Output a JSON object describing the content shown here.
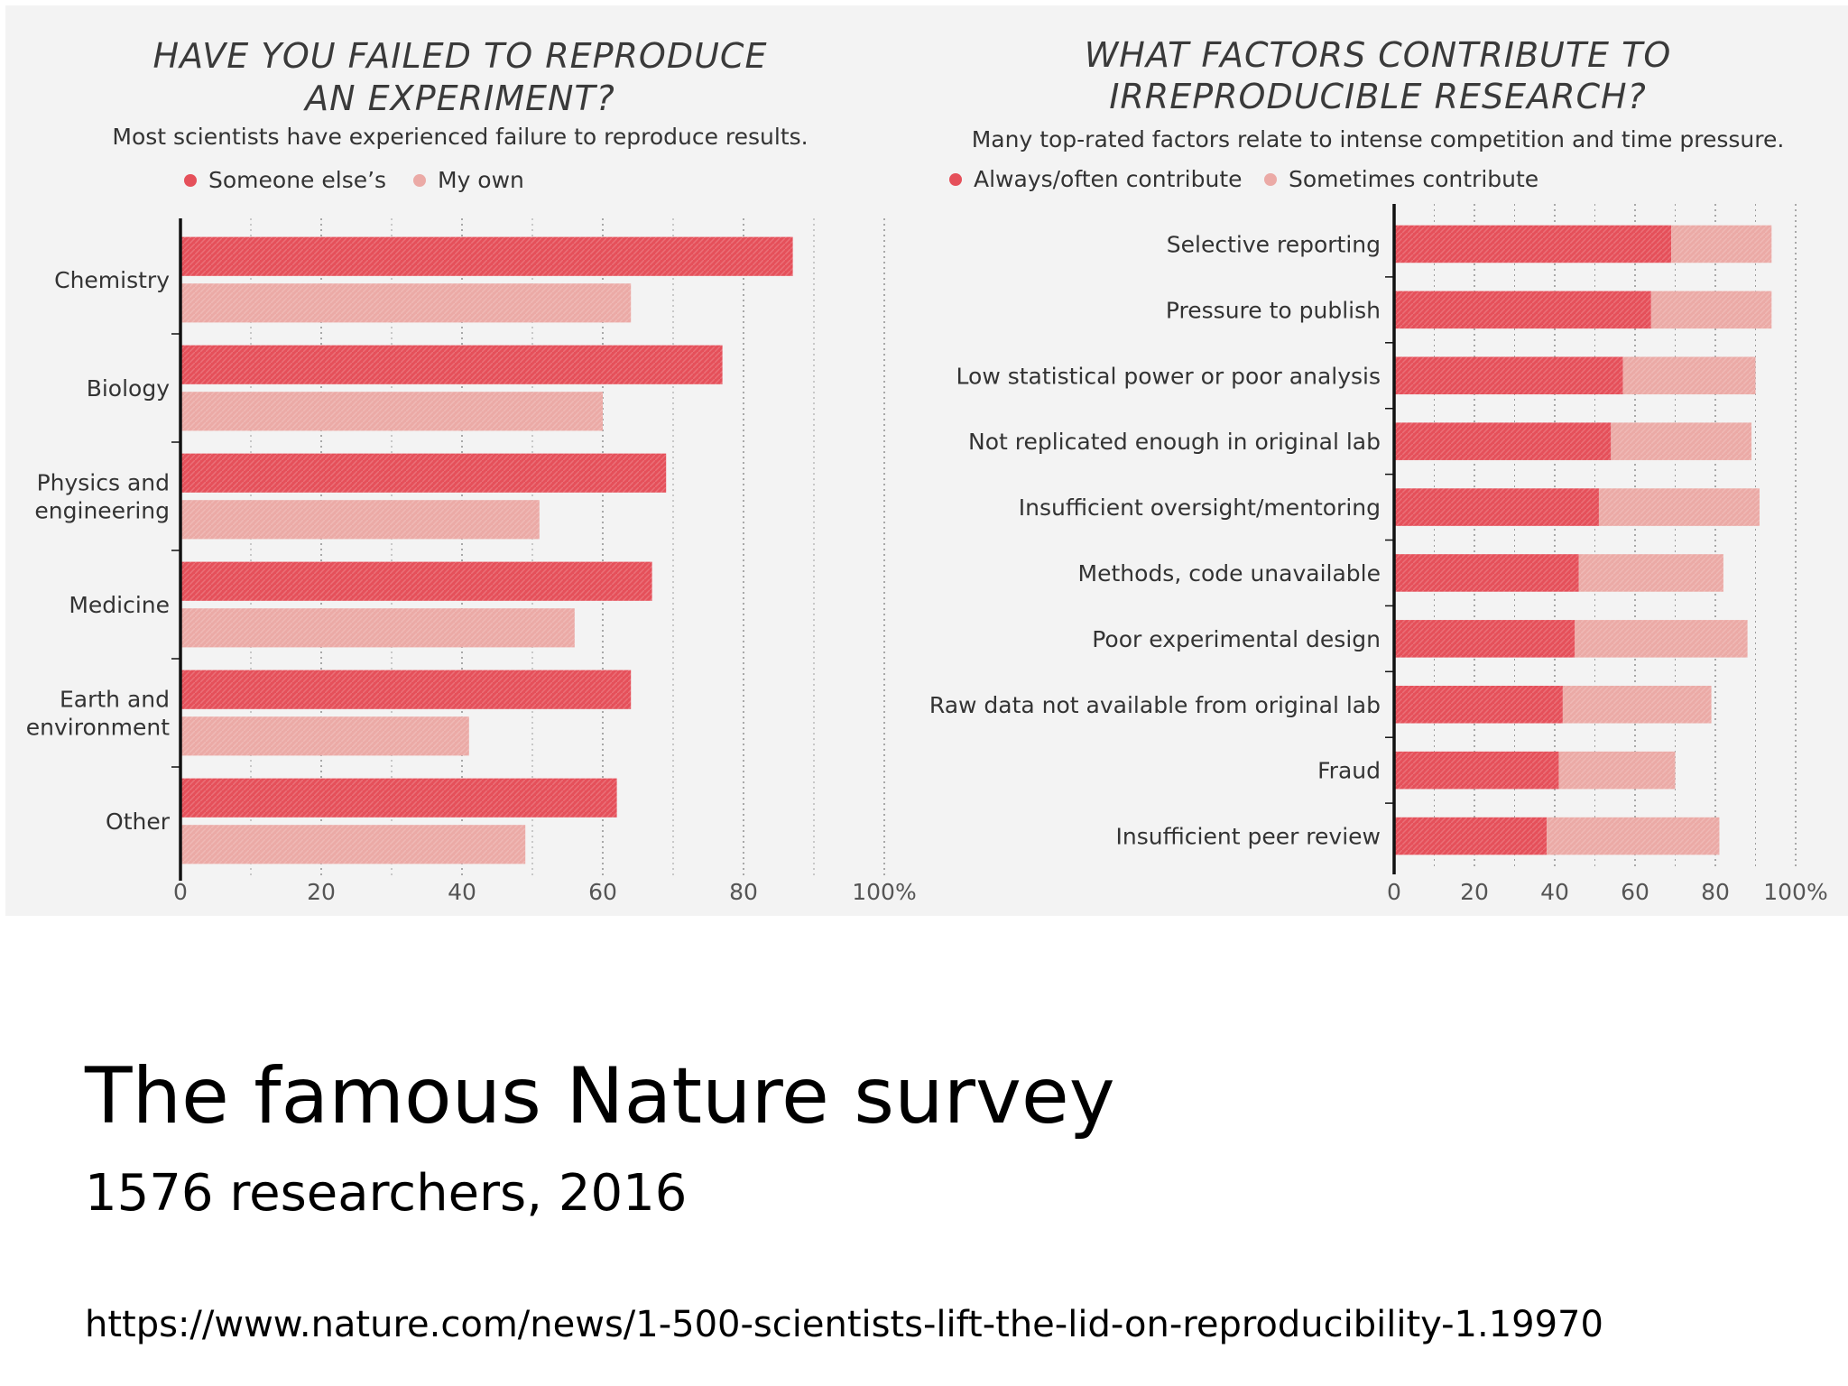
{
  "colors": {
    "dark_red": "#e5505a",
    "light_red": "#ebaaa6",
    "axis": "#111111",
    "grid": "#777777"
  },
  "slide": {
    "title": "The famous Nature survey",
    "subtitle": "1576 researchers, 2016",
    "url": "https://www.nature.com/news/1-500-scientists-lift-the-lid-on-reproducibility-1.19970"
  },
  "chart_data": [
    {
      "type": "bar",
      "orientation": "horizontal",
      "grouping": "grouped",
      "title_lines": [
        "HAVE YOU FAILED TO REPRODUCE",
        "AN EXPERIMENT?"
      ],
      "subtitle": "Most scientists have experienced failure to reproduce results.",
      "categories": [
        [
          "Chemistry"
        ],
        [
          "Biology"
        ],
        [
          "Physics and",
          "engineering"
        ],
        [
          "Medicine"
        ],
        [
          "Earth and",
          "environment"
        ],
        [
          "Other"
        ]
      ],
      "series": [
        {
          "name": "Someone else’s",
          "color": "#e5505a",
          "values": [
            87,
            77,
            69,
            67,
            64,
            62
          ]
        },
        {
          "name": "My own",
          "color": "#ebaaa6",
          "values": [
            64,
            60,
            51,
            56,
            41,
            49
          ]
        }
      ],
      "xlim": [
        0,
        100
      ],
      "ticks": [
        0,
        20,
        40,
        60,
        80,
        100
      ],
      "tick_labels": [
        "0",
        "20",
        "40",
        "60",
        "80",
        "100%"
      ],
      "grid": true,
      "legend_position": "top-left"
    },
    {
      "type": "bar",
      "orientation": "horizontal",
      "grouping": "stacked",
      "title_lines": [
        "WHAT FACTORS CONTRIBUTE TO",
        "IRREPRODUCIBLE RESEARCH?"
      ],
      "subtitle": "Many top-rated factors relate to intense competition and time pressure.",
      "categories": [
        [
          "Selective reporting"
        ],
        [
          "Pressure to publish"
        ],
        [
          "Low statistical power or poor analysis"
        ],
        [
          "Not replicated enough in original lab"
        ],
        [
          "Insufficient oversight/mentoring"
        ],
        [
          "Methods, code unavailable"
        ],
        [
          "Poor experimental design"
        ],
        [
          "Raw data not available from original lab"
        ],
        [
          "Fraud"
        ],
        [
          "Insufficient peer review"
        ]
      ],
      "series": [
        {
          "name": "Always/often contribute",
          "color": "#e5505a",
          "values": [
            69,
            64,
            57,
            54,
            51,
            46,
            45,
            42,
            41,
            38
          ]
        },
        {
          "name": "Sometimes contribute",
          "color": "#ebaaa6",
          "values": [
            25,
            30,
            33,
            35,
            40,
            36,
            43,
            37,
            29,
            43
          ]
        }
      ],
      "xlim": [
        0,
        100
      ],
      "ticks": [
        0,
        20,
        40,
        60,
        80,
        100
      ],
      "tick_labels": [
        "0",
        "20",
        "40",
        "60",
        "80",
        "100%"
      ],
      "grid": true,
      "legend_position": "top-left"
    }
  ]
}
